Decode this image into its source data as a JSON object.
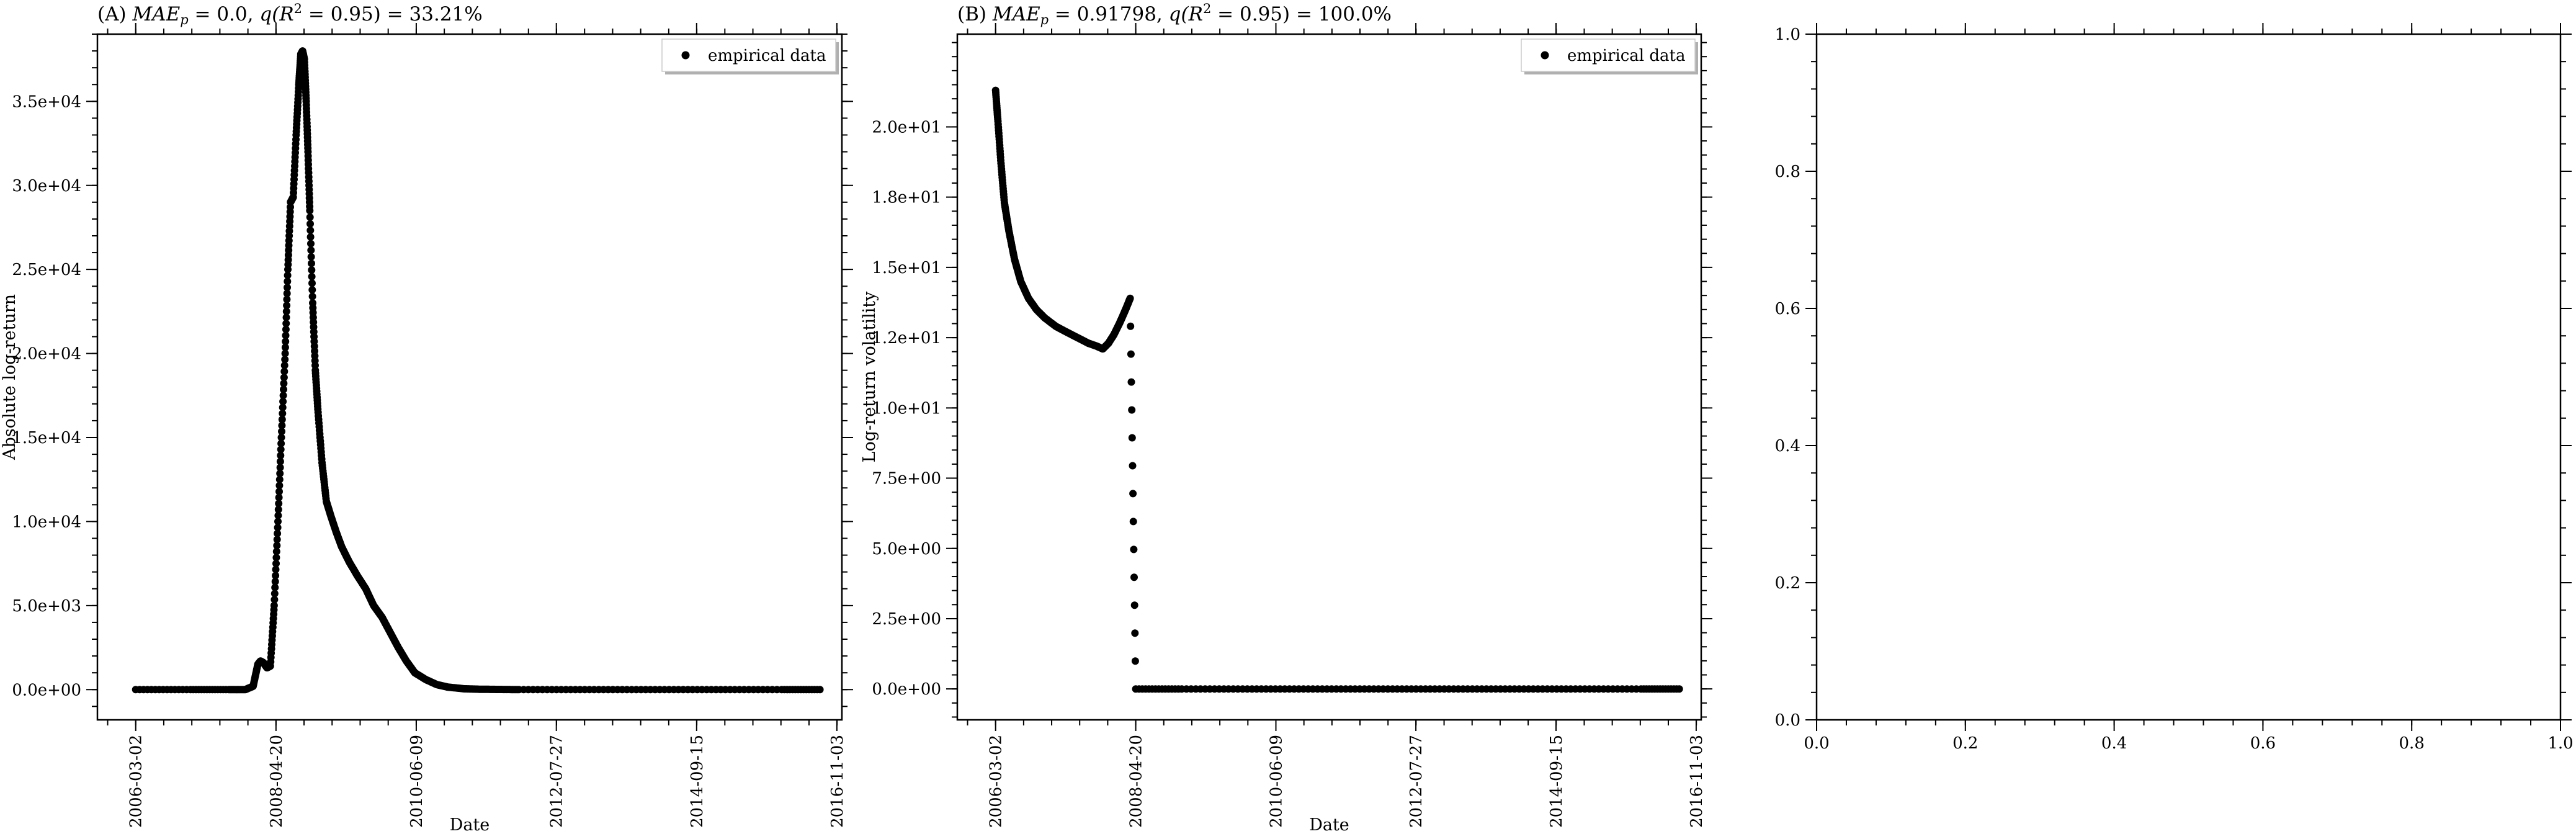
{
  "chart_data": [
    {
      "type": "scatter",
      "title": "(A) MAE_p = 0.0, q(R^2 = 0.95) = 33.21%",
      "title_parts": {
        "tag": "(A)",
        "metric": "MAE",
        "sub": "p",
        "mae_value": "= 0.0,",
        "q_open": "q(",
        "r": "R",
        "r_exp": "2",
        "q_close": "= 0.95) = 33.21%"
      },
      "xlabel": "Date",
      "ylabel": "Absolute log-return",
      "x_ticks": [
        "2006-03-02",
        "2008-04-20",
        "2010-06-09",
        "2012-07-27",
        "2014-09-15",
        "2016-11-03"
      ],
      "y_ticks": [
        "0.0e+00",
        "5.0e+03",
        "1.0e+04",
        "1.5e+04",
        "2.0e+04",
        "2.5e+04",
        "3.0e+04",
        "3.5e+04"
      ],
      "xlim": [
        "2005-08-01",
        "2016-12-01"
      ],
      "ylim": [
        -1800,
        39000
      ],
      "legend": {
        "label": "empirical data",
        "position": "top-right"
      },
      "series": [
        {
          "name": "empirical data",
          "x": [
            "2006-03-02",
            "2007-01-01",
            "2007-08-01",
            "2007-11-01",
            "2007-12-15",
            "2008-01-10",
            "2008-01-25",
            "2008-02-10",
            "2008-03-01",
            "2008-03-20",
            "2008-04-10",
            "2008-05-01",
            "2008-05-20",
            "2008-06-10",
            "2008-06-25",
            "2008-07-10",
            "2008-07-25",
            "2008-08-10",
            "2008-08-25",
            "2008-09-05",
            "2008-09-15",
            "2008-09-25",
            "2008-10-05",
            "2008-10-15",
            "2008-10-25",
            "2008-11-10",
            "2008-11-25",
            "2008-12-10",
            "2009-01-01",
            "2009-01-25",
            "2009-02-20",
            "2009-03-20",
            "2009-04-20",
            "2009-06-01",
            "2009-07-15",
            "2009-09-01",
            "2009-10-15",
            "2009-12-01",
            "2010-01-15",
            "2010-03-01",
            "2010-04-15",
            "2010-06-01",
            "2010-08-01",
            "2010-10-01",
            "2010-12-01",
            "2011-03-01",
            "2011-06-01",
            "2011-09-01",
            "2012-01-01",
            "2013-01-01",
            "2014-01-01",
            "2015-01-01",
            "2016-01-01",
            "2016-08-01"
          ],
          "values": [
            0,
            0,
            0,
            0,
            200,
            1500,
            1700,
            1600,
            1300,
            1400,
            5000,
            10000,
            15000,
            20000,
            25000,
            29000,
            29300,
            33000,
            36000,
            37800,
            38000,
            37500,
            35000,
            32000,
            28500,
            23000,
            19000,
            16500,
            13500,
            11200,
            10300,
            9400,
            8500,
            7600,
            6800,
            6000,
            5000,
            4300,
            3400,
            2500,
            1700,
            1000,
            600,
            300,
            150,
            50,
            20,
            10,
            0,
            0,
            0,
            0,
            0,
            0
          ]
        }
      ]
    },
    {
      "type": "scatter",
      "title": "(B) MAE_p = 0.91798, q(R^2 = 0.95) = 100.0%",
      "title_parts": {
        "tag": "(B)",
        "metric": "MAE",
        "sub": "p",
        "mae_value": "= 0.91798,",
        "q_open": "q(",
        "r": "R",
        "r_exp": "2",
        "q_close": "= 0.95) = 100.0%"
      },
      "xlabel": "Date",
      "ylabel": "Log-return volatility",
      "x_ticks": [
        "2006-03-02",
        "2008-04-20",
        "2010-06-09",
        "2012-07-27",
        "2014-09-15",
        "2016-11-03"
      ],
      "y_ticks": [
        "0.0e+00",
        "2.5e+00",
        "5.0e+00",
        "7.5e+00",
        "1.0e+01",
        "1.2e+01",
        "1.5e+01",
        "1.8e+01",
        "2.0e+01"
      ],
      "y_tick_values": [
        0,
        2.5,
        5,
        7.5,
        10,
        12.5,
        15,
        17.5,
        20
      ],
      "xlim": [
        "2005-08-01",
        "2016-12-01"
      ],
      "ylim": [
        -1.1,
        23.3
      ],
      "legend": {
        "label": "empirical data",
        "position": "top-right"
      },
      "series": [
        {
          "name": "empirical data",
          "x": [
            "2006-03-02",
            "2006-03-15",
            "2006-04-01",
            "2006-04-20",
            "2006-05-15",
            "2006-06-15",
            "2006-07-20",
            "2006-09-01",
            "2006-10-15",
            "2006-12-01",
            "2007-02-01",
            "2007-04-01",
            "2007-06-01",
            "2007-08-01",
            "2007-09-15",
            "2007-10-20",
            "2007-11-20",
            "2007-12-20",
            "2008-01-20",
            "2008-02-10",
            "2008-03-01",
            "2008-03-20",
            "2008-04-20",
            "2009-01-01",
            "2010-01-01",
            "2011-01-01",
            "2012-01-01",
            "2013-01-01",
            "2014-01-01",
            "2015-01-01",
            "2016-01-01",
            "2016-08-01"
          ],
          "values": [
            21.3,
            20.2,
            18.7,
            17.3,
            16.3,
            15.3,
            14.5,
            13.9,
            13.5,
            13.2,
            12.9,
            12.7,
            12.5,
            12.3,
            12.2,
            12.1,
            12.3,
            12.6,
            13.0,
            13.3,
            13.6,
            13.9,
            0,
            0,
            0,
            0,
            0,
            0,
            0,
            0,
            0,
            0
          ]
        }
      ]
    },
    {
      "type": "scatter",
      "title": "",
      "x_ticks": [
        "0.0",
        "0.2",
        "0.4",
        "0.6",
        "0.8",
        "1.0"
      ],
      "y_ticks": [
        "0.0",
        "0.2",
        "0.4",
        "0.6",
        "0.8",
        "1.0"
      ],
      "xlim": [
        0,
        1
      ],
      "ylim": [
        0,
        1
      ],
      "series": []
    }
  ]
}
